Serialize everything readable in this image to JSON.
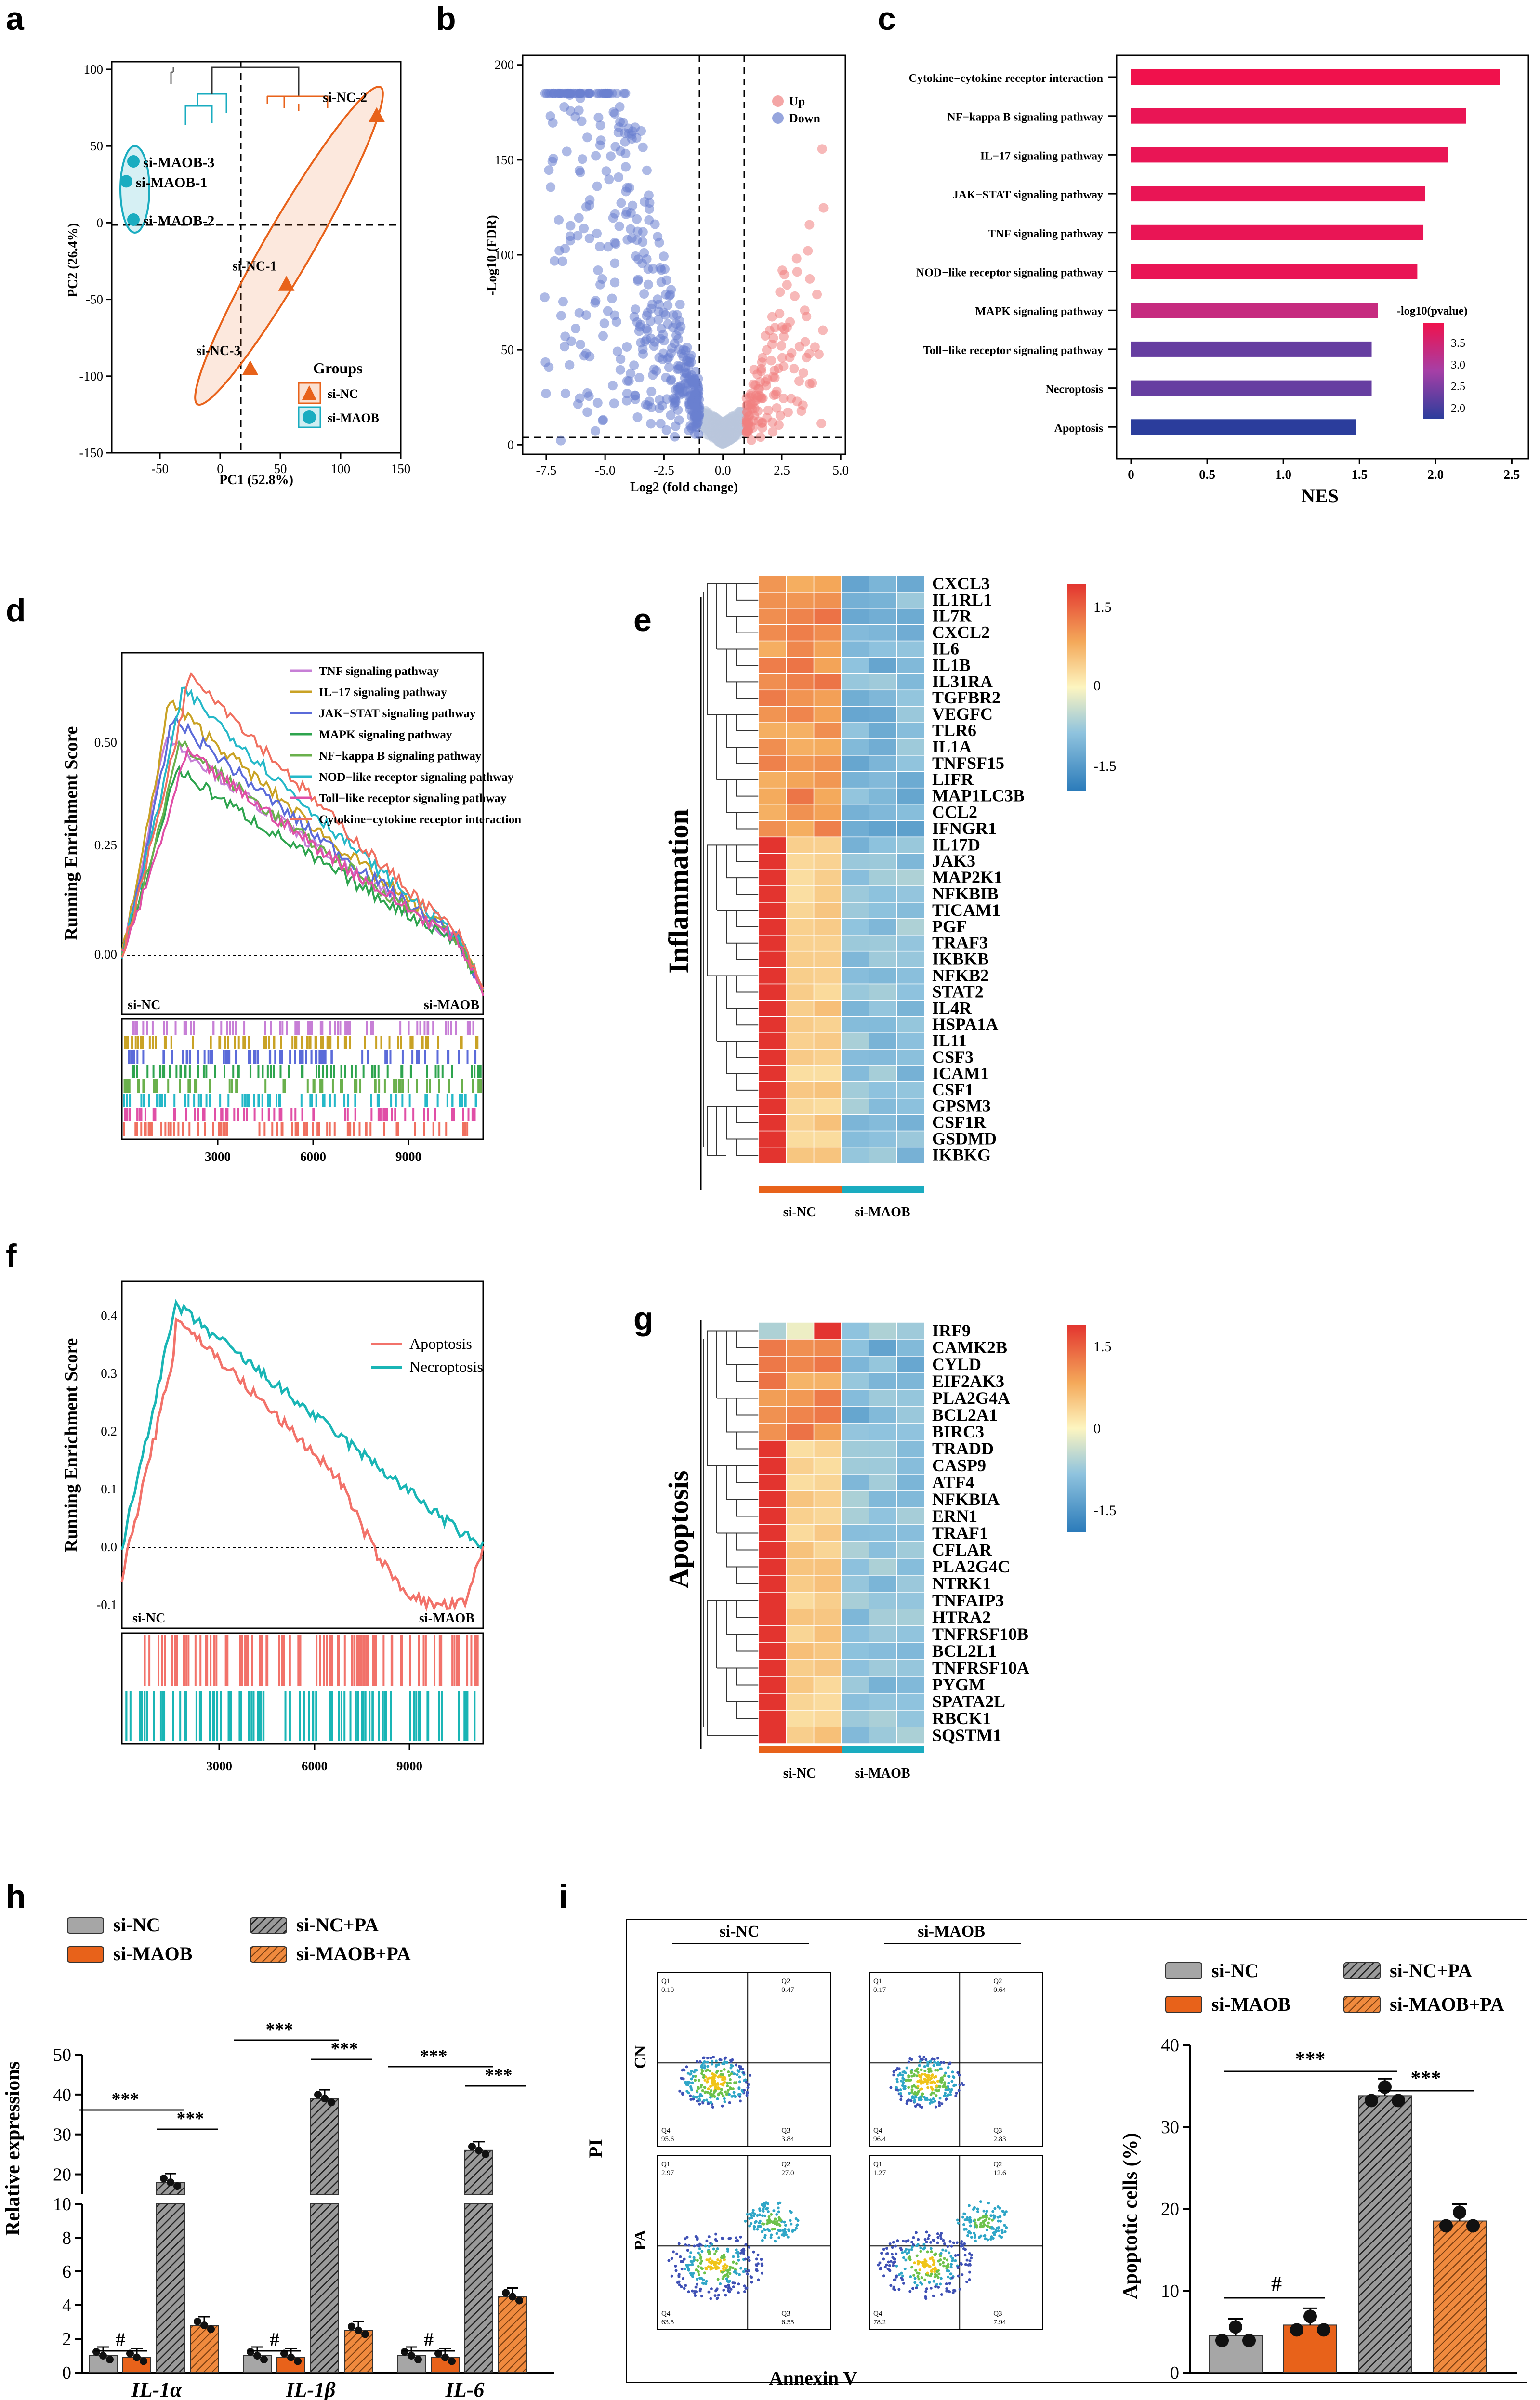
{
  "panel_labels": [
    "a",
    "b",
    "c",
    "d",
    "e",
    "f",
    "g",
    "h",
    "i"
  ],
  "colors": {
    "si_nc": "#e8621a",
    "si_maob": "#1aacc0",
    "up": "#f08080",
    "down": "#6a7fcf",
    "ns": "#b9c7dc",
    "heat_hi": "#e3342f",
    "heat_mid": "#fdf5c0",
    "heat_lo": "#2b7bba"
  },
  "chart_data": [
    {
      "id": "a",
      "type": "scatter",
      "xlabel": "PC1 (52.8%)",
      "ylabel": "PC2 (26.4%)",
      "xlim": [
        -90,
        150
      ],
      "ylim": [
        -150,
        105
      ],
      "xticks": [
        -50,
        0,
        50,
        100,
        150
      ],
      "yticks": [
        -150,
        -100,
        -50,
        0,
        50,
        100
      ],
      "legend_title": "Groups",
      "series": [
        {
          "name": "si-NC",
          "points": [
            {
              "label": "si-NC-2",
              "x": 130,
              "y": 70
            },
            {
              "label": "si-NC-1",
              "x": 55,
              "y": -40
            },
            {
              "label": "si-NC-3",
              "x": 25,
              "y": -95
            }
          ]
        },
        {
          "name": "si-MAOB",
          "points": [
            {
              "label": "si-MAOB-3",
              "x": -72,
              "y": 40
            },
            {
              "label": "si-MAOB-1",
              "x": -78,
              "y": 27
            },
            {
              "label": "si-MAOB-2",
              "x": -72,
              "y": 2
            }
          ]
        }
      ]
    },
    {
      "id": "b",
      "type": "scatter",
      "xlabel": "Log2 (fold change)",
      "ylabel": "-Log10 (FDR)",
      "xlim": [
        -8.5,
        5.2
      ],
      "ylim": [
        -5,
        205
      ],
      "xticks": [
        -7.5,
        -5.0,
        -2.5,
        0.0,
        2.5,
        5.0
      ],
      "yticks": [
        0,
        50,
        100,
        150,
        200
      ],
      "legend": [
        "Up",
        "Down"
      ]
    },
    {
      "id": "c",
      "type": "bar",
      "xlabel": "NES",
      "categories": [
        "Cytokine−cytokine receptor interaction",
        "NF−kappa B signaling pathway",
        "IL−17 signaling pathway",
        "JAK−STAT signaling pathway",
        "TNF signaling pathway",
        "NOD−like receptor signaling pathway",
        "MAPK signaling pathway",
        "Toll−like receptor signaling pathway",
        "Necroptosis",
        "Apoptosis"
      ],
      "values": [
        2.42,
        2.2,
        2.08,
        1.93,
        1.92,
        1.88,
        1.62,
        1.58,
        1.58,
        1.48
      ],
      "pvalue_log10": [
        3.9,
        3.8,
        3.8,
        3.8,
        3.8,
        3.8,
        3.3,
        2.3,
        2.3,
        1.8
      ],
      "xlim": [
        0,
        2.6
      ],
      "xticks": [
        "0",
        "0.5",
        "1.0",
        "1.5",
        "2.0",
        "2.5"
      ],
      "colorbar_title": "-log10(pvalue)",
      "colorbar_ticks": [
        "3.5",
        "3.0",
        "2.5",
        "2.0"
      ]
    },
    {
      "id": "d",
      "type": "line",
      "ylabel": "Running Enrichment Score",
      "xticks": [
        "3000",
        "6000",
        "9000"
      ],
      "yticks": [
        "0.00",
        "0.25",
        "0.50"
      ],
      "left_label": "si-NC",
      "right_label": "si-MAOB",
      "series": [
        {
          "name": "TNF signaling pathway",
          "color": "#c77fd6",
          "peak": 0.52
        },
        {
          "name": "IL−17 signaling pathway",
          "color": "#c9a225",
          "peak": 0.6
        },
        {
          "name": "JAK−STAT signaling pathway",
          "color": "#5b6bd9",
          "peak": 0.56
        },
        {
          "name": "MAPK signaling pathway",
          "color": "#2ea44e",
          "peak": 0.44
        },
        {
          "name": "NF−kappa B signaling pathway",
          "color": "#6ab04c",
          "peak": 0.5
        },
        {
          "name": "NOD−like receptor signaling pathway",
          "color": "#25b8c8",
          "peak": 0.63
        },
        {
          "name": "Toll−like receptor signaling pathway",
          "color": "#e04fa6",
          "peak": 0.48
        },
        {
          "name": "Cytokine−cytokine receptor interaction",
          "color": "#f07060",
          "peak": 0.67
        }
      ]
    },
    {
      "id": "e",
      "type": "heatmap",
      "ylabel": "Inflammation",
      "genes": [
        "CXCL3",
        "IL1RL1",
        "IL7R",
        "CXCL2",
        "IL6",
        "IL1B",
        "IL31RA",
        "TGFBR2",
        "VEGFC",
        "TLR6",
        "IL1A",
        "TNFSF15",
        "LIFR",
        "MAP1LC3B",
        "CCL2",
        "IFNGR1",
        "IL17D",
        "JAK3",
        "MAP2K1",
        "NFKBIB",
        "TICAM1",
        "PGF",
        "TRAF3",
        "IKBKB",
        "NFKB2",
        "STAT2",
        "IL4R",
        "HSPA1A",
        "IL11",
        "CSF3",
        "ICAM1",
        "CSF1",
        "GPSM3",
        "CSF1R",
        "GSDMD",
        "IKBKG"
      ],
      "groups": [
        "si-NC",
        "si-MAOB"
      ],
      "colorbar_ticks": [
        "1.5",
        "0",
        "-1.5"
      ]
    },
    {
      "id": "f",
      "type": "line",
      "ylabel": "Running Enrichment Score",
      "xticks": [
        "3000",
        "6000",
        "9000"
      ],
      "yticks": [
        "-0.1",
        "0.0",
        "0.1",
        "0.2",
        "0.3",
        "0.4"
      ],
      "left_label": "si-NC",
      "right_label": "si-MAOB",
      "series": [
        {
          "name": "Apoptosis",
          "color": "#f2726a"
        },
        {
          "name": "Necroptosis",
          "color": "#19b5b5"
        }
      ]
    },
    {
      "id": "g",
      "type": "heatmap",
      "ylabel": "Apoptosis",
      "genes": [
        "IRF9",
        "CAMK2B",
        "CYLD",
        "EIF2AK3",
        "PLA2G4A",
        "BCL2A1",
        "BIRC3",
        "TRADD",
        "CASP9",
        "ATF4",
        "NFKBIA",
        "ERN1",
        "TRAF1",
        "CFLAR",
        "PLA2G4C",
        "NTRK1",
        "TNFAIP3",
        "HTRA2",
        "TNFRSF10B",
        "BCL2L1",
        "TNFRSF10A",
        "PYGM",
        "SPATA2L",
        "RBCK1",
        "SQSTM1"
      ],
      "groups": [
        "si-NC",
        "si-MAOB"
      ],
      "colorbar_ticks": [
        "1.5",
        "0",
        "-1.5"
      ]
    },
    {
      "id": "h",
      "type": "bar",
      "ylabel": "Relative expressions",
      "categories": [
        "IL-1α",
        "IL-1β",
        "IL-6"
      ],
      "series": [
        {
          "name": "si-NC",
          "values": [
            1.0,
            1.0,
            1.0
          ]
        },
        {
          "name": "si-MAOB",
          "values": [
            0.9,
            0.9,
            0.9
          ]
        },
        {
          "name": "si-NC+PA",
          "values": [
            18,
            39,
            26
          ]
        },
        {
          "name": "si-MAOB+PA",
          "values": [
            2.8,
            2.5,
            4.5
          ]
        }
      ],
      "yticks_lower": [
        "0",
        "2",
        "4",
        "6",
        "8",
        "10"
      ],
      "yticks_upper": [
        "20",
        "30",
        "40",
        "50"
      ],
      "annotations": [
        "#",
        "***",
        "***"
      ]
    },
    {
      "id": "i",
      "type": "bar",
      "ylabel": "Apoptotic cells (%)",
      "categories": [
        "si-NC",
        "si-MAOB",
        "si-NC+PA",
        "si-MAOB+PA"
      ],
      "values": [
        4.5,
        5.8,
        33.8,
        18.5
      ],
      "ylim": [
        0,
        40
      ],
      "yticks": [
        "0",
        "10",
        "20",
        "30",
        "40"
      ],
      "annotations": [
        "#",
        "***",
        "***"
      ],
      "flow": {
        "xlabel": "Annexin V",
        "ylabel": "PI",
        "columns": [
          "si-NC",
          "si-MAOB"
        ],
        "rows": [
          "CN",
          "PA"
        ],
        "quadrants": [
          {
            "q1": "0.10",
            "q2": "0.47",
            "q3": "3.84",
            "q4": "95.6"
          },
          {
            "q1": "0.17",
            "q2": "0.64",
            "q3": "2.83",
            "q4": "96.4"
          },
          {
            "q1": "2.97",
            "q2": "27.0",
            "q3": "6.55",
            "q4": "63.5"
          },
          {
            "q1": "1.27",
            "q2": "12.6",
            "q3": "7.94",
            "q4": "78.2"
          }
        ]
      }
    }
  ]
}
